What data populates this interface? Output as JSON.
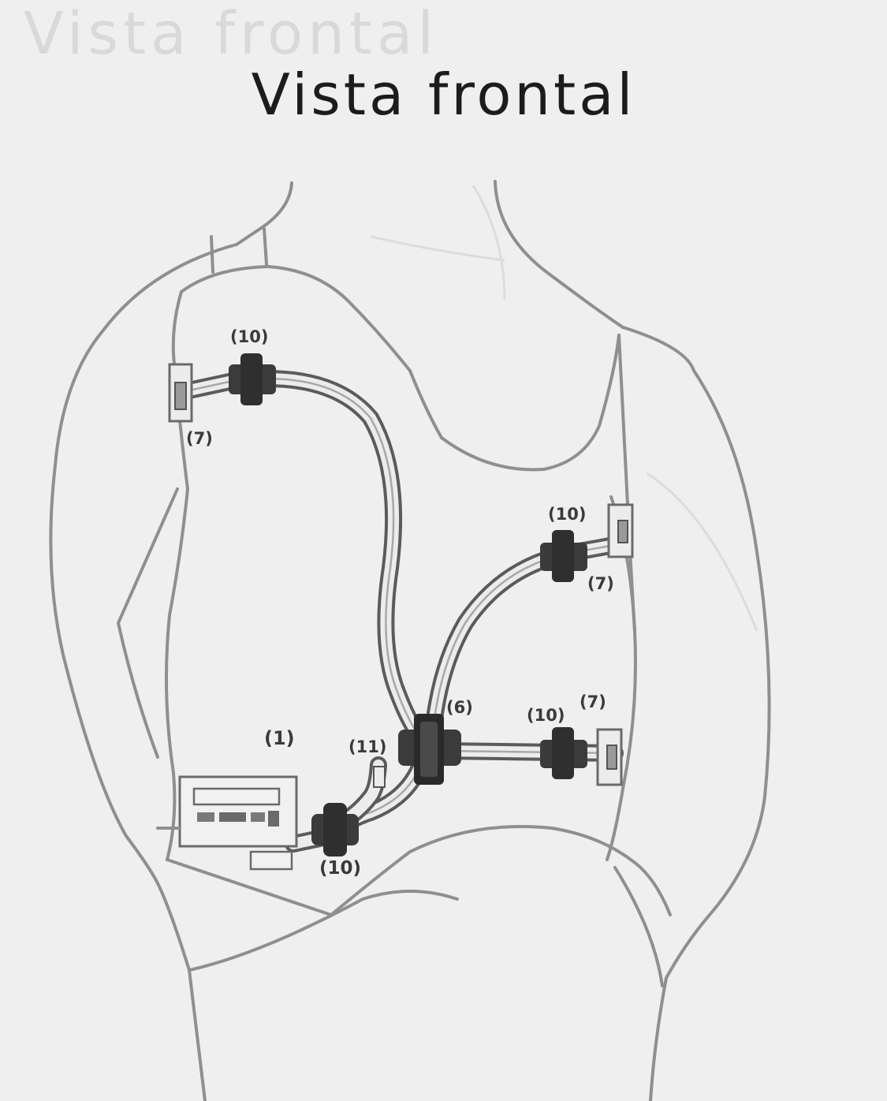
{
  "title": "Vista frontal",
  "ghost_title": "Vista frontal",
  "labels": {
    "connector_top_left": "(10)",
    "electrode_top_left": "(7)",
    "connector_right_upper": "(10)",
    "electrode_right_upper": "(7)",
    "hub": "(6)",
    "connector_right_lower": "(10)",
    "electrode_right_lower": "(7)",
    "device": "(1)",
    "connector_hub_small": "(11)",
    "connector_bottom": "(10)"
  }
}
